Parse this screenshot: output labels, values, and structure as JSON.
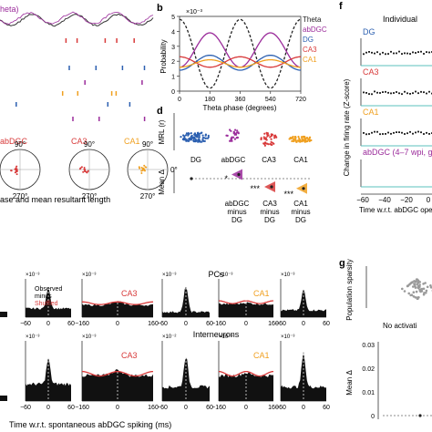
{
  "panels": {
    "a": {
      "trace_label": "heta)"
    },
    "b": {
      "letter": "b",
      "scale": "×10⁻³",
      "ylabel": "Probability",
      "xlabel": "Theta phase (degrees)",
      "legend": [
        {
          "name": "Theta",
          "color": "#222222"
        },
        {
          "name": "abDGC",
          "color": "#9b2c9b"
        },
        {
          "name": "DG",
          "color": "#2b5fb0"
        },
        {
          "name": "CA3",
          "color": "#d83a3a"
        },
        {
          "name": "CA1",
          "color": "#f0a020"
        }
      ]
    },
    "c": {
      "polar_labels": [
        "abDGC",
        "CA3",
        "CA1"
      ],
      "angle_top": "90°",
      "angle_bottom": "270°",
      "angle_right": "0°",
      "caption": "ase and mean resultant length"
    },
    "d": {
      "letter": "d",
      "ylabel_top": "MRL (r)",
      "ylabel_bottom": "Mean Δ",
      "categories": [
        "DG",
        "abDGC",
        "CA3",
        "CA1"
      ],
      "contrasts": [
        {
          "line1": "abDGC",
          "line2": "minus",
          "line3": "DG",
          "sig": "*"
        },
        {
          "line1": "CA3",
          "line2": "minus",
          "line3": "DG",
          "sig": "***"
        },
        {
          "line1": "CA1",
          "line2": "minus",
          "line3": "DG",
          "sig": "***"
        }
      ]
    },
    "f": {
      "letter": "f",
      "title": "Individual",
      "ylabel": "Change in firing rate (Z-score)",
      "xlabel": "Time w.r.t. abDGC ope",
      "subplots": [
        "DG",
        "CA3",
        "CA1",
        "abDGC (4–7 wpi, g"
      ],
      "xticks": [
        "−60",
        "−40",
        "−20",
        "0"
      ]
    },
    "e": {
      "row_pcs": "PCs",
      "row_int": "Interneurons",
      "xlabel": "Time w.r.t. spontaneous abDGC spiking (ms)",
      "legend_observed": "Observed",
      "legend_minus": "minus",
      "legend_shuffled": "Shuffled",
      "ca3": "CA3",
      "ca1": "CA1",
      "scales": [
        "×10⁻³",
        "×10⁻³",
        "×10⁻³",
        "×10⁻³",
        "×10⁻³",
        "×10⁻³",
        "×10⁻³",
        "×10⁻²",
        "×10⁻³",
        "×10⁻³",
        "×10⁻³",
        "×10⁻³"
      ],
      "ticks_wide": [
        "−160",
        "0",
        "160"
      ],
      "ticks_narrow": [
        "−60",
        "0",
        "60"
      ]
    },
    "g": {
      "letter": "g",
      "ylabel_top": "Population sparsity",
      "ylabel_bottom": "Mean Δ",
      "annotation": "No activati",
      "yticks": [
        "0.03",
        "0.02",
        "0.01",
        "0"
      ]
    }
  },
  "chart_data": [
    {
      "type": "line",
      "panel": "b",
      "xlabel": "Theta phase (degrees)",
      "ylabel": "Probability",
      "x": [
        0,
        180,
        360,
        540,
        720
      ],
      "xlim": [
        0,
        720
      ],
      "ylim": [
        0,
        5
      ],
      "yticks": [
        0,
        1,
        2,
        3,
        4,
        5
      ],
      "series": [
        {
          "name": "Theta",
          "color": "#222222",
          "values": [
            4.8,
            0.2,
            4.8,
            0.2,
            4.8
          ]
        },
        {
          "name": "abDGC",
          "color": "#9b2c9b",
          "values": [
            1.6,
            3.9,
            1.6,
            3.9,
            1.6
          ]
        },
        {
          "name": "DG",
          "color": "#2b5fb0",
          "values": [
            1.4,
            2.4,
            1.4,
            2.4,
            1.4
          ]
        },
        {
          "name": "CA3",
          "color": "#d83a3a",
          "values": [
            2.3,
            1.6,
            2.3,
            1.6,
            2.3
          ]
        },
        {
          "name": "CA1",
          "color": "#f0a020",
          "values": [
            1.6,
            2.1,
            1.6,
            2.1,
            1.6
          ]
        }
      ]
    },
    {
      "type": "scatter",
      "panel": "d",
      "ylabel": "MRL (r)",
      "categories": [
        "DG",
        "abDGC",
        "CA3",
        "CA1"
      ],
      "medians": [
        0.35,
        0.4,
        0.3,
        0.3
      ],
      "spread": [
        0.25,
        0.3,
        0.35,
        0.15
      ],
      "mean_delta": [
        0.0,
        0.05,
        -0.1,
        -0.12
      ],
      "significance": [
        "",
        "*",
        "***",
        "***"
      ],
      "ylim": [
        0,
        1
      ]
    },
    {
      "type": "line",
      "panel": "f",
      "xlabel": "Time w.r.t. abDGC ope",
      "ylabel": "Change in firing rate (Z-score)",
      "xlim": [
        -60,
        5
      ],
      "series": [
        {
          "name": "DG",
          "values": [
            0.0,
            0.05,
            -0.05,
            0.02,
            0.0
          ]
        },
        {
          "name": "CA3",
          "values": [
            0.0,
            -0.03,
            0.02,
            -0.02,
            0.0
          ]
        },
        {
          "name": "CA1",
          "values": [
            0.0,
            0.02,
            -0.02,
            0.02,
            0.0
          ]
        },
        {
          "name": "abDGC (4–7 wpi, g",
          "values": [
            0.0,
            0.0,
            0.0,
            0.0,
            0.0
          ]
        }
      ]
    },
    {
      "type": "area",
      "panel": "e",
      "xlabel": "Time w.r.t. spontaneous abDGC spiking (ms)",
      "rows": [
        "PCs",
        "Interneurons"
      ],
      "subplots": [
        {
          "row": "PCs",
          "label": "",
          "kind": "narrow",
          "xlim": [
            -60,
            60
          ],
          "peak": 0.85,
          "base": 0.25
        },
        {
          "row": "PCs",
          "label": "CA3",
          "kind": "wide",
          "xlim": [
            -160,
            160
          ],
          "peak": 0.45,
          "base": 0.35
        },
        {
          "row": "PCs",
          "label": "",
          "kind": "narrow",
          "xlim": [
            -60,
            60
          ],
          "peak": 0.9,
          "base": 0.15
        },
        {
          "row": "PCs",
          "label": "CA1",
          "kind": "wide",
          "xlim": [
            -160,
            160
          ],
          "peak": 0.42,
          "base": 0.38
        },
        {
          "row": "PCs",
          "label": "",
          "kind": "narrow",
          "xlim": [
            -60,
            60
          ],
          "peak": 0.8,
          "base": 0.2
        },
        {
          "row": "Interneurons",
          "label": "",
          "kind": "narrow",
          "xlim": [
            -60,
            60
          ],
          "peak": 0.75,
          "base": 0.3
        },
        {
          "row": "Interneurons",
          "label": "CA3",
          "kind": "wide",
          "xlim": [
            -160,
            160
          ],
          "peak": 0.55,
          "base": 0.45
        },
        {
          "row": "Interneurons",
          "label": "",
          "kind": "narrow",
          "xlim": [
            -60,
            60
          ],
          "peak": 0.8,
          "base": 0.25
        },
        {
          "row": "Interneurons",
          "label": "CA1",
          "kind": "wide",
          "xlim": [
            -160,
            160
          ],
          "peak": 0.5,
          "base": 0.45
        },
        {
          "row": "Interneurons",
          "label": "",
          "kind": "narrow",
          "xlim": [
            -60,
            60
          ],
          "peak": 0.85,
          "base": 0.25
        }
      ]
    },
    {
      "type": "scatter",
      "panel": "g",
      "ylabel": "Population sparsity",
      "yticks": [
        0,
        0.01,
        0.02,
        0.03
      ],
      "mean_delta": [
        0.0
      ]
    }
  ]
}
